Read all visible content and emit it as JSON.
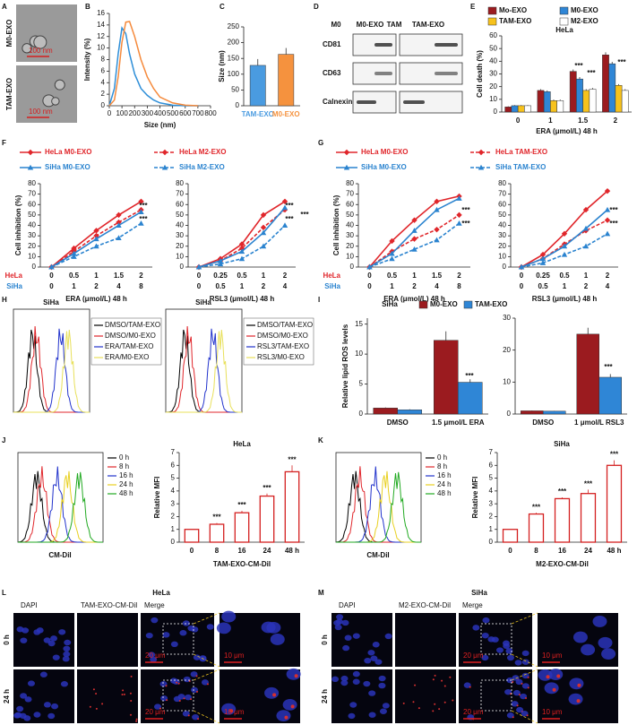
{
  "panel_labels": [
    "A",
    "B",
    "C",
    "D",
    "E",
    "F",
    "G",
    "H",
    "I",
    "J",
    "K",
    "L",
    "M"
  ],
  "tem": {
    "rows": [
      "M0-EXO",
      "TAM-EXO"
    ],
    "scale_bars": [
      "100 nm",
      "100 nm"
    ]
  },
  "western_blot": {
    "columns": [
      "M0",
      "M0-EXO",
      "TAM",
      "TAM-EXO"
    ],
    "rows": [
      "CD81",
      "CD63",
      "Calnexin"
    ]
  },
  "flow_h": [
    {
      "title": "SiHa",
      "legend": [
        "DMSO/TAM-EXO",
        "DMSO/M0-EXO",
        "ERA/TAM-EXO",
        "ERA/M0-EXO"
      ],
      "colors": [
        "#000000",
        "#e0262b",
        "#2233cc",
        "#e8e05a"
      ]
    },
    {
      "title": "SiHa",
      "legend": [
        "DMSO/TAM-EXO",
        "DMSO/M0-EXO",
        "RSL3/TAM-EXO",
        "RSL3/M0-EXO"
      ],
      "colors": [
        "#000000",
        "#e0262b",
        "#2233cc",
        "#e8e05a"
      ]
    }
  ],
  "flow_uptake": [
    {
      "legend": [
        "0 h",
        "8 h",
        "16 h",
        "24 h",
        "48 h"
      ],
      "colors": [
        "#000000",
        "#e0262b",
        "#2233cc",
        "#e8d020",
        "#22aa22"
      ],
      "xlabel": "CM-DiI"
    },
    {
      "legend": [
        "0 h",
        "8 h",
        "16 h",
        "24 h",
        "48 h"
      ],
      "colors": [
        "#000000",
        "#e0262b",
        "#2233cc",
        "#e8d020",
        "#22aa22"
      ],
      "xlabel": "CM-DiI"
    }
  ],
  "microscopy": [
    {
      "title": "HeLa",
      "columns": [
        "DAPI",
        "TAM-EXO-CM-DiI",
        "Merge"
      ],
      "rows": [
        "0 h",
        "24 h"
      ],
      "scale_bars": [
        "20 μm",
        "10 μm"
      ]
    },
    {
      "title": "SiHa",
      "columns": [
        "DAPI",
        "M2-EXO-CM-DiI",
        "Merge"
      ],
      "rows": [
        "0 h",
        "24 h"
      ],
      "scale_bars": [
        "20 μm",
        "10 μm"
      ]
    }
  ],
  "chart_data": [
    {
      "type": "line",
      "x": [
        0,
        40,
        70,
        100,
        130,
        160,
        200,
        250,
        300,
        350,
        400,
        500,
        600,
        700
      ],
      "series": [
        {
          "color": "#2f8fd8",
          "values": [
            0,
            3,
            9,
            13.5,
            12.5,
            9,
            5.5,
            3,
            1.8,
            1,
            0.5,
            0.1,
            0,
            0
          ]
        },
        {
          "color": "#f58a3c",
          "values": [
            0,
            1,
            5,
            11,
            14.5,
            14.6,
            12,
            8,
            5,
            3,
            1.5,
            0.5,
            0.1,
            0
          ]
        }
      ],
      "xlabel": "Size (nm)",
      "ylabel": "Intensity (%)",
      "xlim": [
        0,
        800
      ],
      "xticks": [
        0,
        100,
        200,
        300,
        400,
        500,
        600,
        700,
        800
      ],
      "ylim": [
        0,
        16
      ],
      "yticks": [
        0,
        2,
        4,
        6,
        8,
        10,
        12,
        14,
        16
      ]
    },
    {
      "type": "bar",
      "categories": [
        "TAM-EXO",
        "M0-EXO"
      ],
      "values": [
        128,
        163
      ],
      "errors": [
        20,
        20
      ],
      "colors": [
        "#4a9be0",
        "#f5923e"
      ],
      "ylabel": "Size (nm)",
      "ylim": [
        0,
        250
      ],
      "yticks": [
        0,
        50,
        100,
        150,
        200,
        250
      ]
    },
    {
      "type": "bar",
      "title": "HeLa",
      "categories": [
        "0",
        "1",
        "1.5",
        "2"
      ],
      "series": [
        {
          "name": "Mo-EXO",
          "color": "#9b1b1f",
          "values": [
            4,
            17,
            32,
            45
          ],
          "errors": [
            0.5,
            1,
            1.5,
            2
          ]
        },
        {
          "name": "M0-EXO",
          "color": "#2f86d6",
          "values": [
            5,
            16,
            26,
            38
          ],
          "errors": [
            0.5,
            1,
            1.5,
            1.5
          ]
        },
        {
          "name": "TAM-EXO",
          "color": "#f7c21c",
          "values": [
            5,
            9,
            17,
            21
          ],
          "errors": [
            0.5,
            0.8,
            1,
            1
          ]
        },
        {
          "name": "M2-EXO",
          "color": "#ffffff",
          "values": [
            5,
            9,
            18,
            17
          ],
          "errors": [
            0.5,
            0.8,
            1,
            1
          ]
        }
      ],
      "xlabel": "ERA (μmol/L)   48 h",
      "ylabel": "Cell death (%)",
      "ylim": [
        0,
        60
      ],
      "yticks": [
        0,
        10,
        20,
        30,
        40,
        50,
        60
      ],
      "annotations": [
        "***",
        "***",
        "***"
      ]
    },
    {
      "type": "line",
      "category_rows": [
        {
          "name": "HeLa",
          "color": "#e0262b",
          "labels": [
            "0",
            "0.5",
            "1",
            "1.5",
            "2"
          ]
        },
        {
          "name": "SiHa",
          "color": "#2a83cf",
          "labels": [
            "0",
            "1",
            "2",
            "4",
            "8"
          ]
        }
      ],
      "series": [
        {
          "name": "HeLa  M0-EXO",
          "color": "#e0262b",
          "marker": "diamond",
          "dash": false,
          "values": [
            0,
            18,
            35,
            50,
            63
          ]
        },
        {
          "name": "HeLa  M2-EXO",
          "color": "#e0262b",
          "marker": "diamond",
          "dash": true,
          "values": [
            0,
            15,
            30,
            43,
            55
          ]
        },
        {
          "name": "SiHa  M0-EXO",
          "color": "#2a83cf",
          "marker": "triangle",
          "dash": false,
          "values": [
            0,
            13,
            27,
            40,
            53
          ]
        },
        {
          "name": "SiHa  M2-EXO",
          "color": "#2a83cf",
          "marker": "triangle",
          "dash": true,
          "values": [
            0,
            10,
            20,
            28,
            42
          ]
        }
      ],
      "xlabel": "ERA (μmol/L)  48 h",
      "ylabel": "Cell inhibition (%)",
      "ylim": [
        0,
        80
      ],
      "yticks": [
        0,
        10,
        20,
        30,
        40,
        50,
        60,
        70,
        80
      ],
      "annotations": [
        "***",
        "***"
      ]
    },
    {
      "type": "line",
      "category_rows": [
        {
          "color": "#e0262b",
          "labels": [
            "0",
            "0.25",
            "0.5",
            "1",
            "2"
          ]
        },
        {
          "color": "#2a83cf",
          "labels": [
            "0",
            "0.5",
            "1",
            "2",
            "4"
          ]
        }
      ],
      "series": [
        {
          "color": "#e0262b",
          "marker": "diamond",
          "dash": false,
          "values": [
            0,
            8,
            22,
            50,
            63
          ]
        },
        {
          "color": "#e0262b",
          "marker": "diamond",
          "dash": true,
          "values": [
            0,
            6,
            18,
            38,
            55
          ]
        },
        {
          "color": "#2a83cf",
          "marker": "triangle",
          "dash": false,
          "values": [
            0,
            6,
            15,
            33,
            57
          ]
        },
        {
          "color": "#2a83cf",
          "marker": "triangle",
          "dash": true,
          "values": [
            0,
            3,
            8,
            20,
            40
          ]
        }
      ],
      "xlabel": "RSL3 (μmol/L)  48 h",
      "ylim": [
        0,
        80
      ],
      "yticks": [
        0,
        10,
        20,
        30,
        40,
        50,
        60,
        70,
        80
      ],
      "annotations": [
        "***",
        "***",
        "***"
      ]
    },
    {
      "type": "line",
      "category_rows": [
        {
          "name": "HeLa",
          "color": "#e0262b",
          "labels": [
            "0",
            "0.5",
            "1",
            "1.5",
            "2"
          ]
        },
        {
          "name": "SiHa",
          "color": "#2a83cf",
          "labels": [
            "0",
            "1",
            "2",
            "4",
            "8"
          ]
        }
      ],
      "series": [
        {
          "name": "HeLa  M0-EXO",
          "color": "#e0262b",
          "marker": "diamond",
          "dash": false,
          "values": [
            0,
            25,
            45,
            63,
            68
          ]
        },
        {
          "name": "HeLa  TAM-EXO",
          "color": "#e0262b",
          "marker": "diamond",
          "dash": true,
          "values": [
            0,
            15,
            27,
            36,
            50
          ]
        },
        {
          "name": "SiHa  M0-EXO",
          "color": "#2a83cf",
          "marker": "triangle",
          "dash": false,
          "values": [
            0,
            13,
            35,
            55,
            66
          ]
        },
        {
          "name": "SiHa  TAM-EXO",
          "color": "#2a83cf",
          "marker": "triangle",
          "dash": true,
          "values": [
            0,
            8,
            17,
            26,
            42
          ]
        }
      ],
      "xlabel": "ERA (μmol/L)  48 h",
      "ylabel": "Cell inhibition (%)",
      "ylim": [
        0,
        80
      ],
      "yticks": [
        0,
        10,
        20,
        30,
        40,
        50,
        60,
        70,
        80
      ],
      "annotations": [
        "***",
        "***"
      ]
    },
    {
      "type": "line",
      "category_rows": [
        {
          "color": "#e0262b",
          "labels": [
            "0",
            "0.25",
            "0.5",
            "1",
            "2"
          ]
        },
        {
          "color": "#2a83cf",
          "labels": [
            "0",
            "0.5",
            "1",
            "2",
            "4"
          ]
        }
      ],
      "series": [
        {
          "color": "#e0262b",
          "marker": "diamond",
          "dash": false,
          "values": [
            0,
            12,
            32,
            55,
            73
          ]
        },
        {
          "color": "#e0262b",
          "marker": "diamond",
          "dash": true,
          "values": [
            0,
            8,
            22,
            35,
            45
          ]
        },
        {
          "color": "#2a83cf",
          "marker": "triangle",
          "dash": false,
          "values": [
            0,
            8,
            20,
            37,
            55
          ]
        },
        {
          "color": "#2a83cf",
          "marker": "triangle",
          "dash": true,
          "values": [
            0,
            4,
            12,
            20,
            32
          ]
        }
      ],
      "xlabel": "RSL3 (μmol/L)  48 h",
      "ylim": [
        0,
        80
      ],
      "yticks": [
        0,
        10,
        20,
        30,
        40,
        50,
        60,
        70,
        80
      ],
      "annotations": [
        "***",
        "***"
      ]
    },
    {
      "type": "bar",
      "title": "SiHa",
      "categories": [
        "DMSO",
        "1.5 μmol/L ERA"
      ],
      "series": [
        {
          "name": "M0-EXO",
          "color": "#9b1b1f",
          "values": [
            1,
            12.3
          ],
          "errors": [
            0.1,
            1.5
          ]
        },
        {
          "name": "TAM-EXO",
          "color": "#2f86d6",
          "values": [
            0.7,
            5.3
          ],
          "errors": [
            0.1,
            0.5
          ]
        }
      ],
      "ylabel": "Relative lipid ROS levels",
      "ylim": [
        0,
        16
      ],
      "yticks": [
        0,
        5,
        10,
        15
      ],
      "annotations": [
        "***"
      ]
    },
    {
      "type": "bar",
      "categories": [
        "DMSO",
        "1 μmol/L RSL3"
      ],
      "series": [
        {
          "color": "#9b1b1f",
          "values": [
            1,
            25
          ],
          "errors": [
            0.1,
            2
          ]
        },
        {
          "color": "#2f86d6",
          "values": [
            0.9,
            11.5
          ],
          "errors": [
            0.1,
            1
          ]
        }
      ],
      "ylim": [
        0,
        30
      ],
      "yticks": [
        0,
        10,
        20,
        30
      ],
      "annotations": [
        "***"
      ]
    },
    {
      "type": "bar",
      "title": "HeLa",
      "categories": [
        "0",
        "8",
        "16",
        "24",
        "48 h"
      ],
      "values": [
        1,
        1.4,
        2.3,
        3.6,
        5.5
      ],
      "errors": [
        0,
        0.1,
        0.15,
        0.2,
        0.5
      ],
      "color": "#ffffff",
      "edge": "#d42020",
      "xlabel": "TAM-EXO-CM-DiI",
      "ylabel": "Relative MFI",
      "ylim": [
        0,
        7
      ],
      "yticks": [
        0,
        1,
        2,
        3,
        4,
        5,
        6,
        7
      ],
      "annotations": [
        "***",
        "***",
        "***",
        "***"
      ]
    },
    {
      "type": "bar",
      "title": "SiHa",
      "categories": [
        "0",
        "8",
        "16",
        "24",
        "48 h"
      ],
      "values": [
        1,
        2.2,
        3.4,
        3.8,
        6.0
      ],
      "errors": [
        0,
        0.1,
        0.1,
        0.3,
        0.4
      ],
      "color": "#ffffff",
      "edge": "#d42020",
      "xlabel": "M2-EXO-CM-DiI",
      "ylabel": "Relative MFI",
      "ylim": [
        0,
        7
      ],
      "yticks": [
        0,
        1,
        2,
        3,
        4,
        5,
        6,
        7
      ],
      "annotations": [
        "***",
        "***",
        "***",
        "***"
      ]
    }
  ]
}
